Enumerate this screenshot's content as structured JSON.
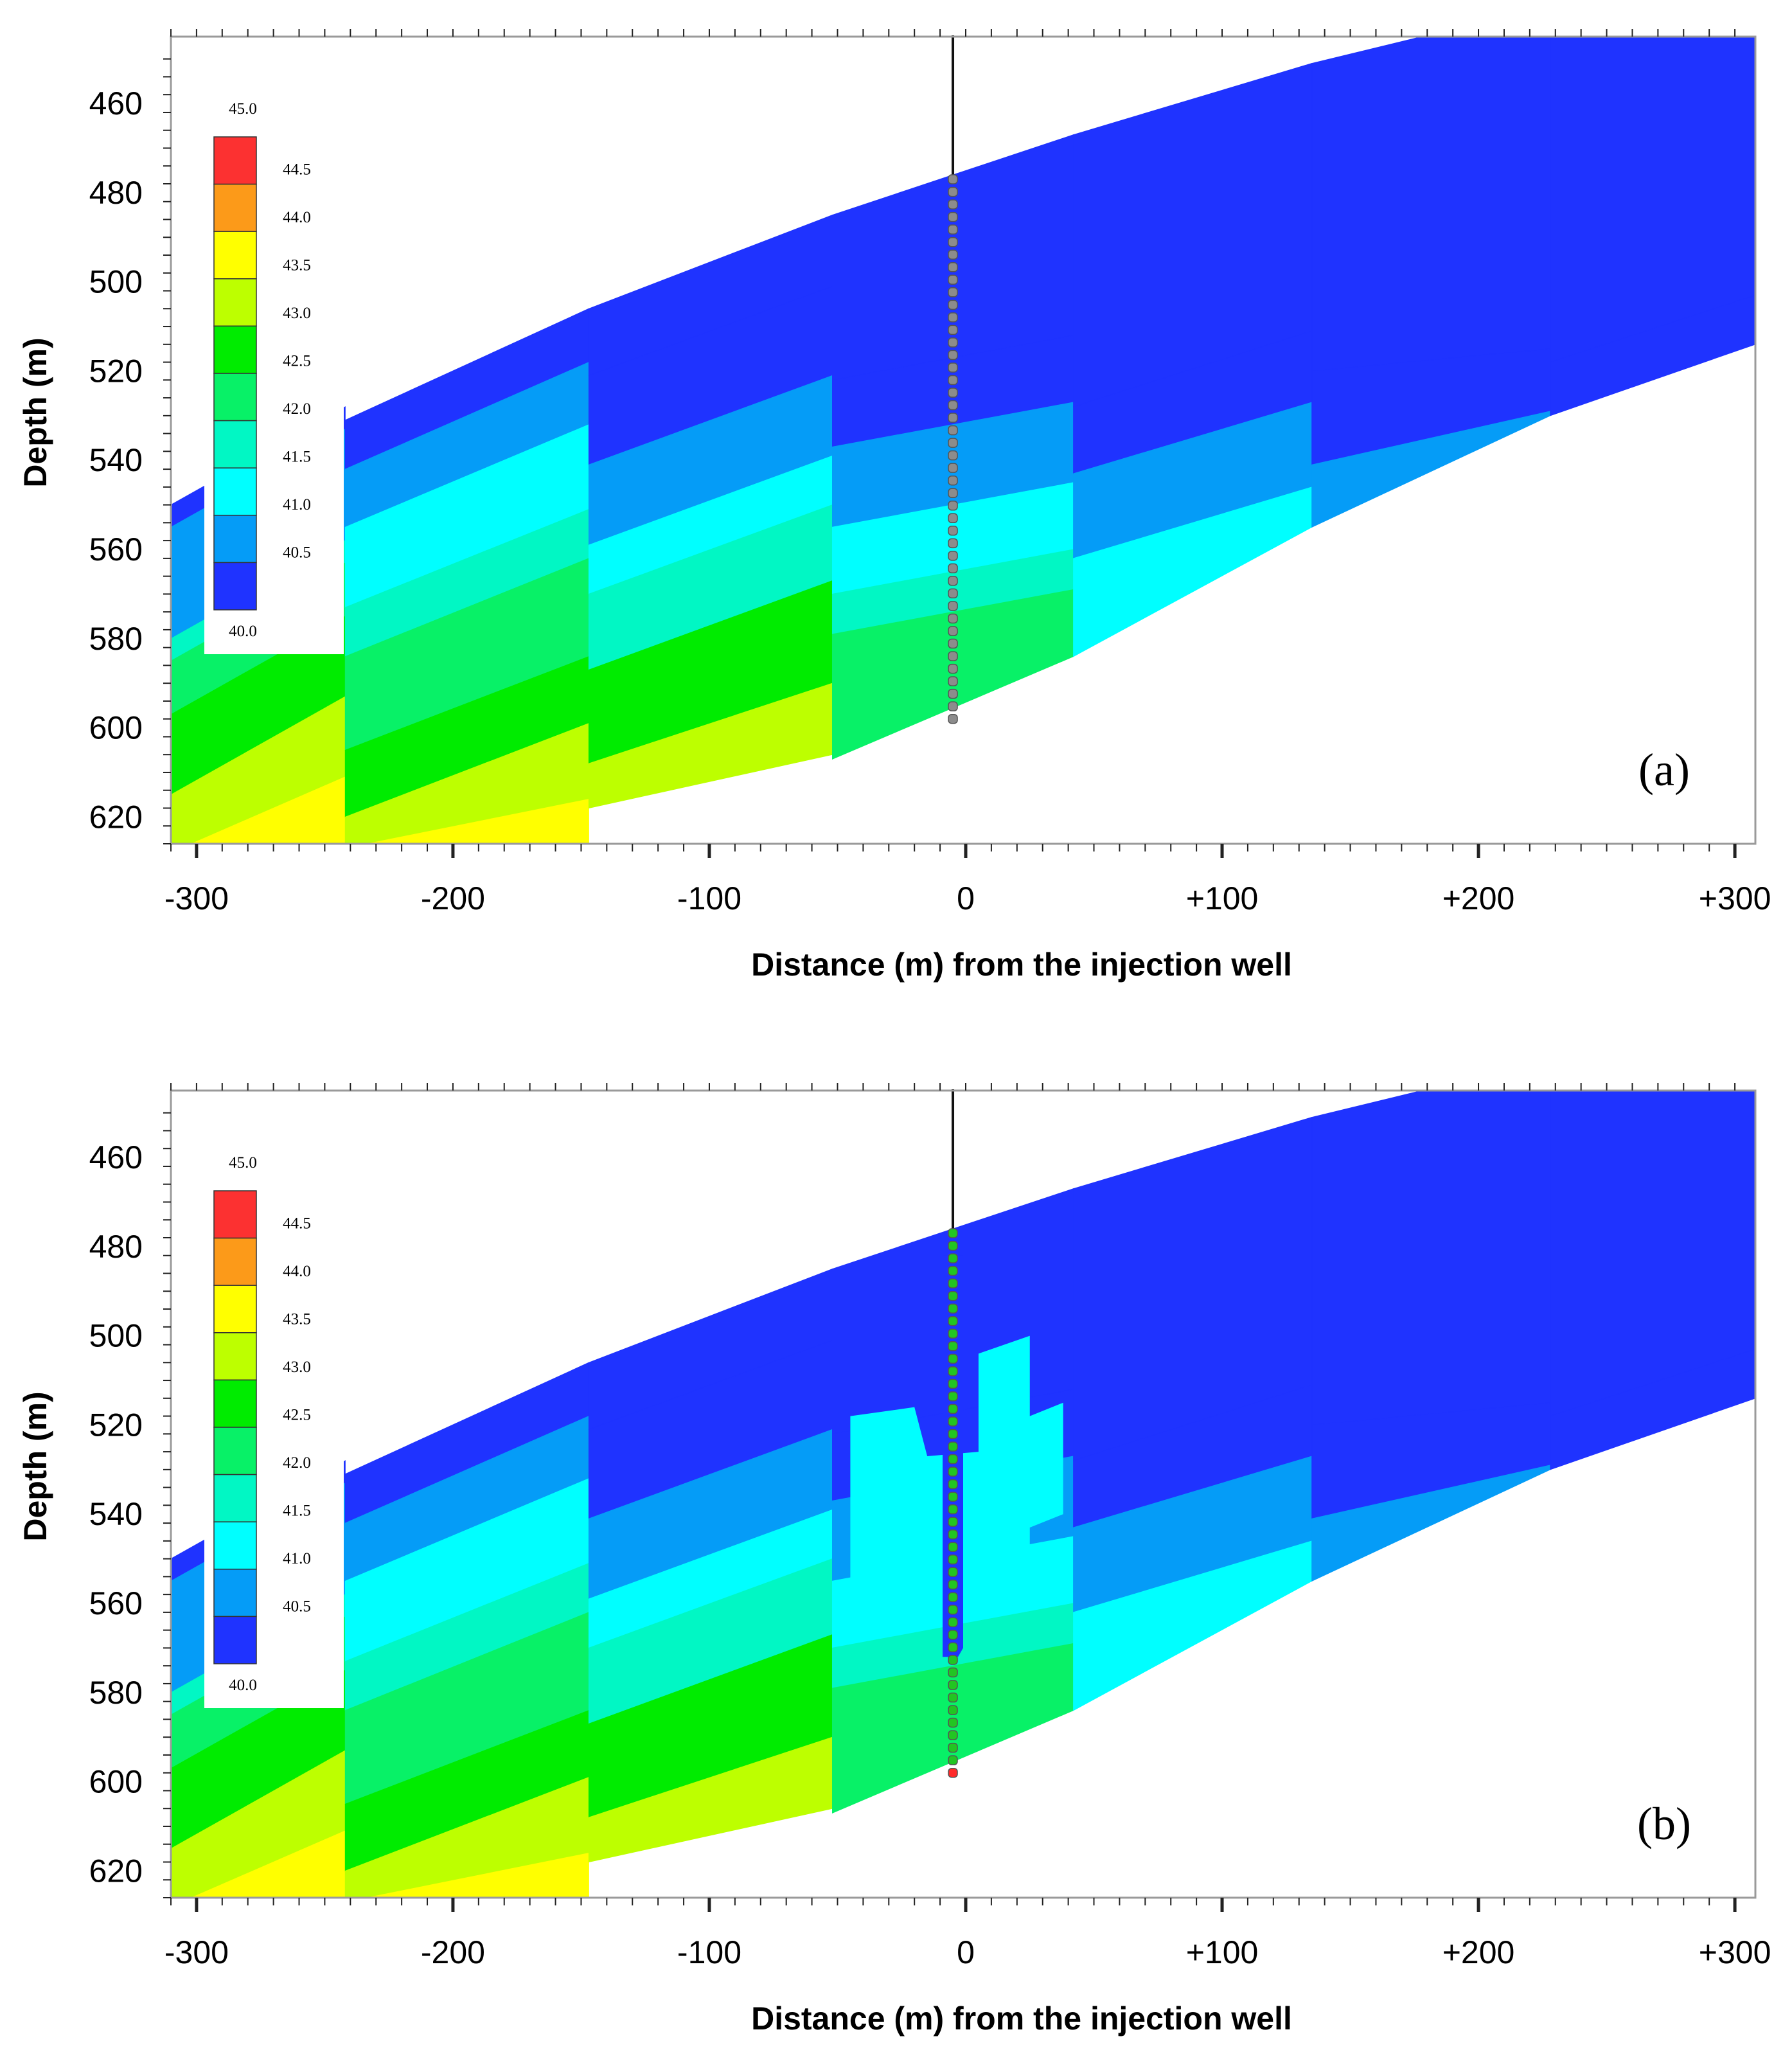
{
  "colors": {
    "40.0-40.5": "#1f33ff",
    "40.5-41.0": "#059cf7",
    "41.0-41.5": "#00ffff",
    "41.5-42.0": "#01f7c4",
    "42.0-42.5": "#08f167",
    "42.5-43.0": "#00ec00",
    "43.0-43.5": "#bdff00",
    "43.5-44.0": "#ffff00",
    "44.0-44.5": "#fc9a19",
    "44.5-45.0": "#fc3131"
  },
  "chart_data": [
    {
      "type": "heatmap",
      "panel_label": "(a)",
      "xlabel": "Distance (m) from the injection well",
      "ylabel": "Depth (m)",
      "xlim": [
        -310,
        308
      ],
      "ylim": [
        626,
        445
      ],
      "x_ticks": [
        {
          "value": -300,
          "label": "-300"
        },
        {
          "value": -200,
          "label": "-200"
        },
        {
          "value": -100,
          "label": "-100"
        },
        {
          "value": 0,
          "label": "0"
        },
        {
          "value": 100,
          "label": "+100"
        },
        {
          "value": 200,
          "label": "+200"
        },
        {
          "value": 300,
          "label": "+300"
        }
      ],
      "y_ticks": [
        {
          "value": 460,
          "label": "460"
        },
        {
          "value": 480,
          "label": "480"
        },
        {
          "value": 500,
          "label": "500"
        },
        {
          "value": 520,
          "label": "520"
        },
        {
          "value": 540,
          "label": "540"
        },
        {
          "value": 560,
          "label": "560"
        },
        {
          "value": 580,
          "label": "580"
        },
        {
          "value": 600,
          "label": "600"
        },
        {
          "value": 620,
          "label": "620"
        }
      ],
      "legend": {
        "title": "",
        "levels": [
          "45.0",
          "44.5",
          "44.0",
          "43.5",
          "43.0",
          "42.5",
          "42.0",
          "41.5",
          "41.0",
          "40.5",
          "40.0"
        ],
        "placement": "top-left"
      },
      "well": {
        "x": -5,
        "top_depth": 445,
        "perforation_top": 477,
        "perforation_bottom": 598,
        "marker_color": "#8c8c8c",
        "bottom_marker_color": "#8c8c8c"
      },
      "plume": false
    },
    {
      "type": "heatmap",
      "panel_label": "(b)",
      "xlabel": "Distance (m) from the injection well",
      "ylabel": "Depth (m)",
      "xlim": [
        -310,
        308
      ],
      "ylim": [
        626,
        445
      ],
      "x_ticks": [
        {
          "value": -300,
          "label": "-300"
        },
        {
          "value": -200,
          "label": "-200"
        },
        {
          "value": -100,
          "label": "-100"
        },
        {
          "value": 0,
          "label": "0"
        },
        {
          "value": 100,
          "label": "+100"
        },
        {
          "value": 200,
          "label": "+200"
        },
        {
          "value": 300,
          "label": "+300"
        }
      ],
      "y_ticks": [
        {
          "value": 460,
          "label": "460"
        },
        {
          "value": 480,
          "label": "480"
        },
        {
          "value": 500,
          "label": "500"
        },
        {
          "value": 520,
          "label": "520"
        },
        {
          "value": 540,
          "label": "540"
        },
        {
          "value": 560,
          "label": "560"
        },
        {
          "value": 580,
          "label": "580"
        },
        {
          "value": 600,
          "label": "600"
        },
        {
          "value": 620,
          "label": "620"
        }
      ],
      "legend": {
        "title": "",
        "levels": [
          "45.0",
          "44.5",
          "44.0",
          "43.5",
          "43.0",
          "42.5",
          "42.0",
          "41.5",
          "41.0",
          "40.5",
          "40.0"
        ],
        "placement": "top-left"
      },
      "well": {
        "x": -5,
        "top_depth": 445,
        "perforation_top": 477,
        "perforation_bottom": 598,
        "marker_color": "#22c522",
        "bottom_marker_color": "#ff2a2a"
      },
      "plume": true
    }
  ]
}
